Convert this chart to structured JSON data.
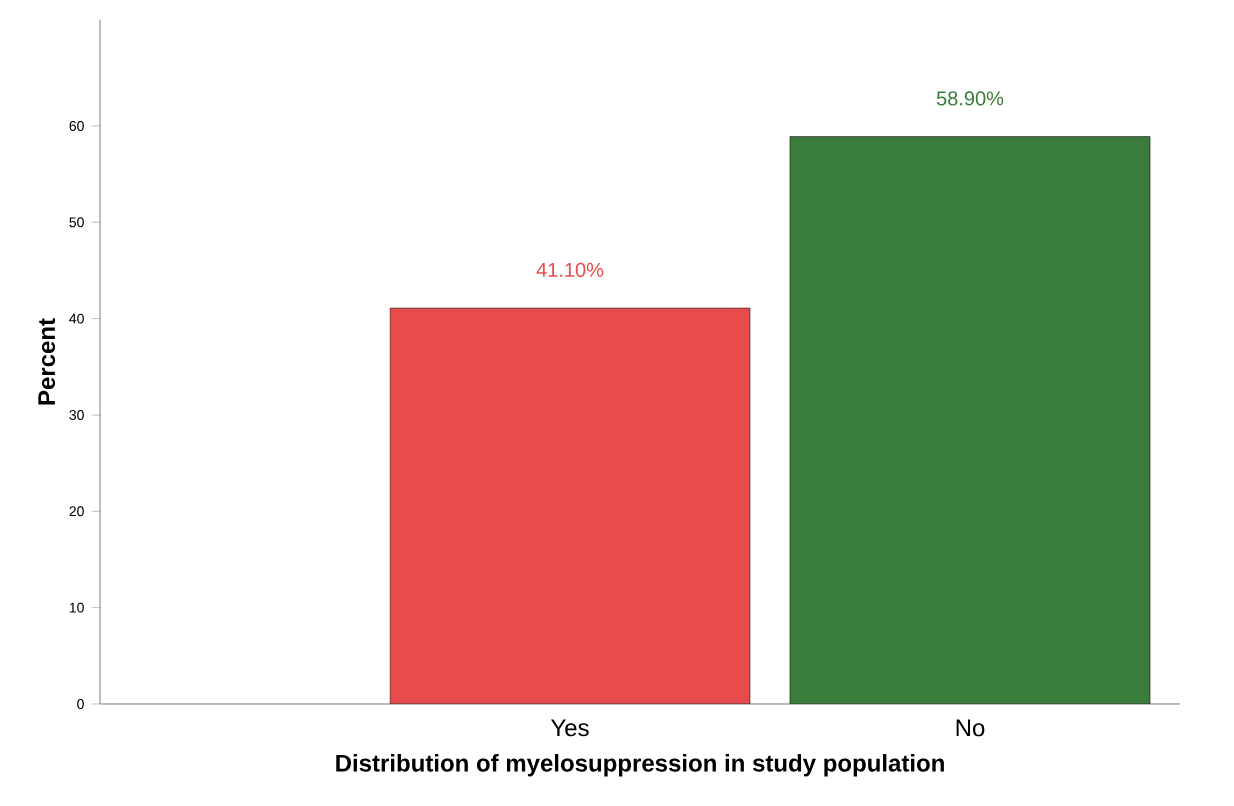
{
  "chart_data": {
    "type": "bar",
    "xlabel": "Distribution of myelosuppression in study population",
    "ylabel": "Percent",
    "categories": [
      "Yes",
      "No"
    ],
    "values": [
      41.1,
      58.9
    ],
    "colors": [
      "#e84b4b",
      "#3a7d3b"
    ],
    "value_labels": [
      "41.10%",
      "58.90%"
    ],
    "ylim": [
      0,
      71
    ],
    "yticks": [
      0,
      10,
      20,
      30,
      40,
      50,
      60
    ],
    "grid": false
  }
}
